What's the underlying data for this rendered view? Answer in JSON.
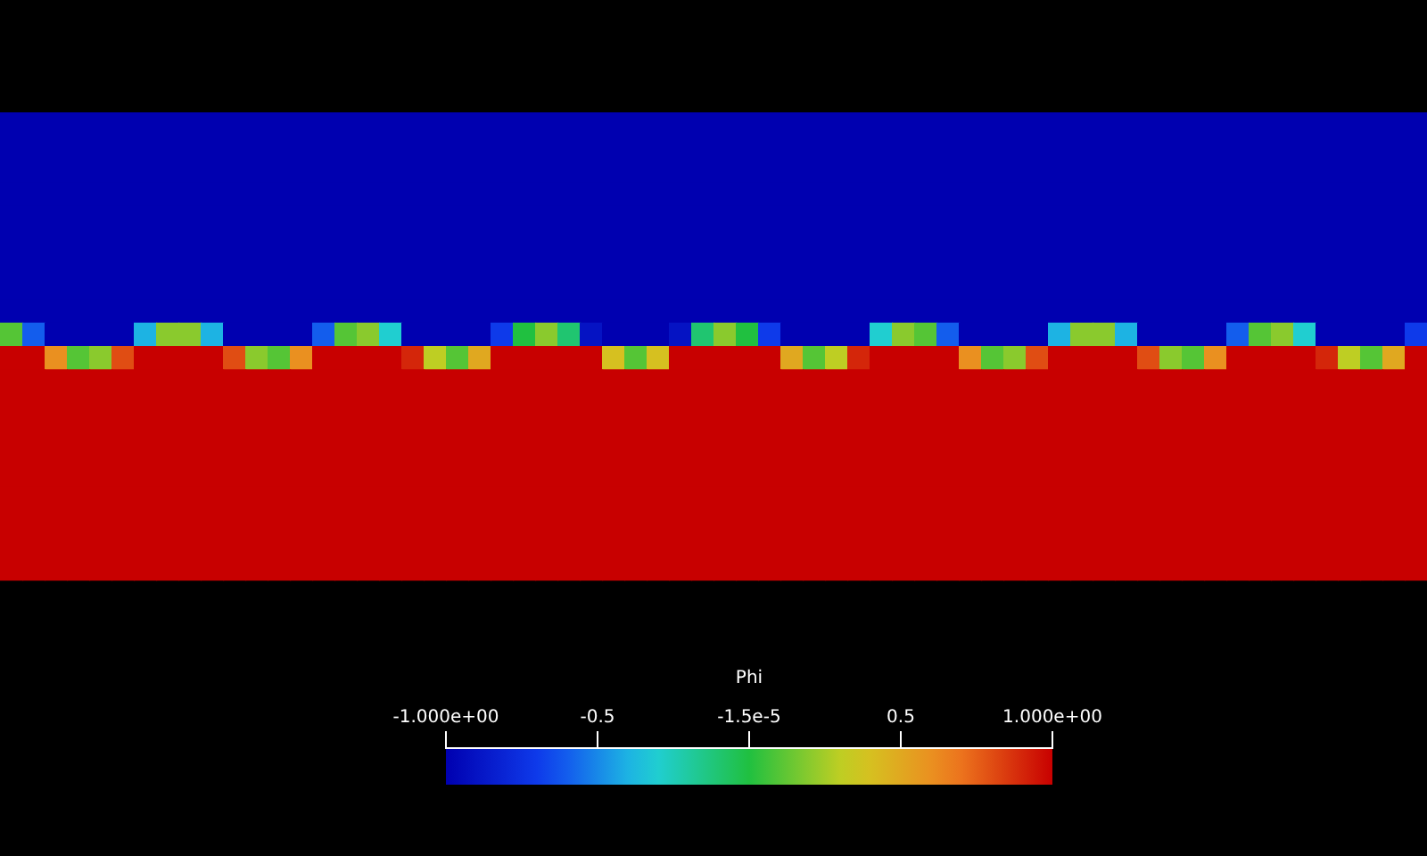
{
  "chart_data": {
    "type": "heatmap",
    "clabel": "Phi",
    "categories": [
      null,
      null,
      null,
      null,
      null,
      null,
      null,
      null,
      null,
      null,
      null,
      null,
      null,
      null,
      null,
      null,
      null,
      null,
      null,
      null,
      null,
      null,
      null,
      null,
      null,
      null,
      null,
      null,
      null,
      null,
      null,
      null,
      null,
      null,
      null,
      null,
      null,
      null,
      null,
      null,
      null,
      null,
      null,
      null,
      null,
      null,
      null,
      null,
      null,
      null,
      null,
      null,
      null,
      null,
      null,
      null,
      null,
      null,
      null,
      null,
      null,
      null,
      null,
      null
    ],
    "y_categories": [
      null,
      null,
      null,
      null,
      null,
      null,
      null,
      null,
      null,
      null,
      null,
      null,
      null,
      null,
      null,
      null,
      null,
      null,
      null,
      null
    ],
    "clim": [
      -1,
      1
    ],
    "cticks": [
      {
        "value": -1,
        "label": "-1.000e+00"
      },
      -0.5,
      {
        "value": -1.5e-05,
        "label": "-1.5e-5"
      },
      0.5,
      {
        "value": 1,
        "label": "1.000e+00"
      }
    ],
    "cells": [
      [
        -1,
        -1,
        -1,
        -1,
        -1,
        -1,
        -1,
        -1,
        -1,
        -1,
        -1,
        -1,
        -1,
        -1,
        -1,
        -1,
        -1,
        -1,
        -1,
        -1,
        -1,
        -1,
        -1,
        -1,
        -1,
        -1,
        -1,
        -1,
        -1,
        -1,
        -1,
        -1,
        -1,
        -1,
        -1,
        -1,
        -1,
        -1,
        -1,
        -1,
        -1,
        -1,
        -1,
        -1,
        -1,
        -1,
        -1,
        -1,
        -1,
        -1,
        -1,
        -1,
        -1,
        -1,
        -1,
        -1,
        -1,
        -1,
        -1,
        -1,
        -1,
        -1,
        -1,
        -1
      ],
      [
        -1,
        -1,
        -1,
        -1,
        -1,
        -1,
        -1,
        -1,
        -1,
        -1,
        -1,
        -1,
        -1,
        -1,
        -1,
        -1,
        -1,
        -1,
        -1,
        -1,
        -1,
        -1,
        -1,
        -1,
        -1,
        -1,
        -1,
        -1,
        -1,
        -1,
        -1,
        -1,
        -1,
        -1,
        -1,
        -1,
        -1,
        -1,
        -1,
        -1,
        -1,
        -1,
        -1,
        -1,
        -1,
        -1,
        -1,
        -1,
        -1,
        -1,
        -1,
        -1,
        -1,
        -1,
        -1,
        -1,
        -1,
        -1,
        -1,
        -1,
        -1,
        -1,
        -1,
        -1
      ],
      [
        -1,
        -1,
        -1,
        -1,
        -1,
        -1,
        -1,
        -1,
        -1,
        -1,
        -1,
        -1,
        -1,
        -1,
        -1,
        -1,
        -1,
        -1,
        -1,
        -1,
        -1,
        -1,
        -1,
        -1,
        -1,
        -1,
        -1,
        -1,
        -1,
        -1,
        -1,
        -1,
        -1,
        -1,
        -1,
        -1,
        -1,
        -1,
        -1,
        -1,
        -1,
        -1,
        -1,
        -1,
        -1,
        -1,
        -1,
        -1,
        -1,
        -1,
        -1,
        -1,
        -1,
        -1,
        -1,
        -1,
        -1,
        -1,
        -1,
        -1,
        -1,
        -1,
        -1,
        -1
      ],
      [
        -1,
        -1,
        -1,
        -1,
        -1,
        -1,
        -1,
        -1,
        -1,
        -1,
        -1,
        -1,
        -1,
        -1,
        -1,
        -1,
        -1,
        -1,
        -1,
        -1,
        -1,
        -1,
        -1,
        -1,
        -1,
        -1,
        -1,
        -1,
        -1,
        -1,
        -1,
        -1,
        -1,
        -1,
        -1,
        -1,
        -1,
        -1,
        -1,
        -1,
        -1,
        -1,
        -1,
        -1,
        -1,
        -1,
        -1,
        -1,
        -1,
        -1,
        -1,
        -1,
        -1,
        -1,
        -1,
        -1,
        -1,
        -1,
        -1,
        -1,
        -1,
        -1,
        -1,
        -1
      ],
      [
        -1,
        -1,
        -1,
        -1,
        -1,
        -1,
        -1,
        -1,
        -1,
        -1,
        -1,
        -1,
        -1,
        -1,
        -1,
        -1,
        -1,
        -1,
        -1,
        -1,
        -1,
        -1,
        -1,
        -1,
        -1,
        -1,
        -1,
        -1,
        -1,
        -1,
        -1,
        -1,
        -1,
        -1,
        -1,
        -1,
        -1,
        -1,
        -1,
        -1,
        -1,
        -1,
        -1,
        -1,
        -1,
        -1,
        -1,
        -1,
        -1,
        -1,
        -1,
        -1,
        -1,
        -1,
        -1,
        -1,
        -1,
        -1,
        -1,
        -1,
        -1,
        -1,
        -1,
        -1
      ],
      [
        -1,
        -1,
        -1,
        -1,
        -1,
        -1,
        -1,
        -1,
        -1,
        -1,
        -1,
        -1,
        -1,
        -1,
        -1,
        -1,
        -1,
        -1,
        -1,
        -1,
        -1,
        -1,
        -1,
        -1,
        -1,
        -1,
        -1,
        -1,
        -1,
        -1,
        -1,
        -1,
        -1,
        -1,
        -1,
        -1,
        -1,
        -1,
        -1,
        -1,
        -1,
        -1,
        -1,
        -1,
        -1,
        -1,
        -1,
        -1,
        -1,
        -1,
        -1,
        -1,
        -1,
        -1,
        -1,
        -1,
        -1,
        -1,
        -1,
        -1,
        -1,
        -1,
        -1,
        -1
      ],
      [
        -1,
        -1,
        -1,
        -1,
        -1,
        -1,
        -1,
        -1,
        -1,
        -1,
        -1,
        -1,
        -1,
        -1,
        -1,
        -1,
        -1,
        -1,
        -1,
        -1,
        -1,
        -1,
        -1,
        -1,
        -1,
        -1,
        -1,
        -1,
        -1,
        -1,
        -1,
        -1,
        -1,
        -1,
        -1,
        -1,
        -1,
        -1,
        -1,
        -1,
        -1,
        -1,
        -1,
        -1,
        -1,
        -1,
        -1,
        -1,
        -1,
        -1,
        -1,
        -1,
        -1,
        -1,
        -1,
        -1,
        -1,
        -1,
        -1,
        -1,
        -1,
        -1,
        -1,
        -1
      ],
      [
        -1,
        -1,
        -1,
        -1,
        -1,
        -1,
        -1,
        -1,
        -1,
        -1,
        -1,
        -1,
        -1,
        -1,
        -1,
        -1,
        -1,
        -1,
        -1,
        -1,
        -1,
        -1,
        -1,
        -1,
        -1,
        -1,
        -1,
        -1,
        -1,
        -1,
        -1,
        -1,
        -1,
        -1,
        -1,
        -1,
        -1,
        -1,
        -1,
        -1,
        -1,
        -1,
        -1,
        -1,
        -1,
        -1,
        -1,
        -1,
        -1,
        -1,
        -1,
        -1,
        -1,
        -1,
        -1,
        -1,
        -1,
        -1,
        -1,
        -1,
        -1,
        -1,
        -1,
        -1
      ],
      [
        -1,
        -1,
        -1,
        -1,
        -1,
        -1,
        -1,
        -1,
        -1,
        -1,
        -1,
        -1,
        -1,
        -1,
        -1,
        -1,
        -1,
        -1,
        -1,
        -1,
        -1,
        -1,
        -1,
        -1,
        -1,
        -1,
        -1,
        -1,
        -1,
        -1,
        -1,
        -1,
        -1,
        -1,
        -1,
        -1,
        -1,
        -1,
        -1,
        -1,
        -1,
        -1,
        -1,
        -1,
        -1,
        -1,
        -1,
        -1,
        -1,
        -1,
        -1,
        -1,
        -1,
        -1,
        -1,
        -1,
        -1,
        -1,
        -1,
        -1,
        -1,
        -1,
        -1,
        -1
      ],
      [
        0.1,
        -0.6,
        -1,
        -1,
        -1,
        -1,
        -0.4,
        0.2,
        0.2,
        -0.4,
        -1,
        -1,
        -1,
        -1,
        -0.6,
        0.1,
        0.2,
        -0.3,
        -1,
        -1,
        -1,
        -1,
        -0.7,
        0,
        0.2,
        -0.1,
        -0.9,
        -1,
        -1,
        -1,
        -0.9,
        -0.1,
        0.2,
        0,
        -0.7,
        -1,
        -1,
        -1,
        -1,
        -0.3,
        0.2,
        0.1,
        -0.6,
        -1,
        -1,
        -1,
        -1,
        -0.4,
        0.2,
        0.2,
        -0.4,
        -1,
        -1,
        -1,
        -1,
        -0.6,
        0.1,
        0.2,
        -0.3,
        -1,
        -1,
        -1,
        -1,
        -0.7
      ],
      [
        1,
        1,
        0.6,
        0.1,
        0.2,
        0.8,
        1,
        1,
        1,
        1,
        0.8,
        0.2,
        0.1,
        0.6,
        1,
        1,
        1,
        1,
        0.9,
        0.3,
        0.1,
        0.5,
        1,
        1,
        1,
        1,
        1,
        0.4,
        0.1,
        0.4,
        1,
        1,
        1,
        1,
        1,
        0.5,
        0.1,
        0.3,
        0.9,
        1,
        1,
        1,
        1,
        0.6,
        0.1,
        0.2,
        0.8,
        1,
        1,
        1,
        1,
        0.8,
        0.2,
        0.1,
        0.6,
        1,
        1,
        1,
        1,
        0.9,
        0.3,
        0.1,
        0.5,
        1
      ],
      [
        1,
        1,
        1,
        1,
        1,
        1,
        1,
        1,
        1,
        1,
        1,
        1,
        1,
        1,
        1,
        1,
        1,
        1,
        1,
        1,
        1,
        1,
        1,
        1,
        1,
        1,
        1,
        1,
        1,
        1,
        1,
        1,
        1,
        1,
        1,
        1,
        1,
        1,
        1,
        1,
        1,
        1,
        1,
        1,
        1,
        1,
        1,
        1,
        1,
        1,
        1,
        1,
        1,
        1,
        1,
        1,
        1,
        1,
        1,
        1,
        1,
        1,
        1,
        1
      ],
      [
        1,
        1,
        1,
        1,
        1,
        1,
        1,
        1,
        1,
        1,
        1,
        1,
        1,
        1,
        1,
        1,
        1,
        1,
        1,
        1,
        1,
        1,
        1,
        1,
        1,
        1,
        1,
        1,
        1,
        1,
        1,
        1,
        1,
        1,
        1,
        1,
        1,
        1,
        1,
        1,
        1,
        1,
        1,
        1,
        1,
        1,
        1,
        1,
        1,
        1,
        1,
        1,
        1,
        1,
        1,
        1,
        1,
        1,
        1,
        1,
        1,
        1,
        1,
        1
      ],
      [
        1,
        1,
        1,
        1,
        1,
        1,
        1,
        1,
        1,
        1,
        1,
        1,
        1,
        1,
        1,
        1,
        1,
        1,
        1,
        1,
        1,
        1,
        1,
        1,
        1,
        1,
        1,
        1,
        1,
        1,
        1,
        1,
        1,
        1,
        1,
        1,
        1,
        1,
        1,
        1,
        1,
        1,
        1,
        1,
        1,
        1,
        1,
        1,
        1,
        1,
        1,
        1,
        1,
        1,
        1,
        1,
        1,
        1,
        1,
        1,
        1,
        1,
        1,
        1
      ],
      [
        1,
        1,
        1,
        1,
        1,
        1,
        1,
        1,
        1,
        1,
        1,
        1,
        1,
        1,
        1,
        1,
        1,
        1,
        1,
        1,
        1,
        1,
        1,
        1,
        1,
        1,
        1,
        1,
        1,
        1,
        1,
        1,
        1,
        1,
        1,
        1,
        1,
        1,
        1,
        1,
        1,
        1,
        1,
        1,
        1,
        1,
        1,
        1,
        1,
        1,
        1,
        1,
        1,
        1,
        1,
        1,
        1,
        1,
        1,
        1,
        1,
        1,
        1,
        1
      ],
      [
        1,
        1,
        1,
        1,
        1,
        1,
        1,
        1,
        1,
        1,
        1,
        1,
        1,
        1,
        1,
        1,
        1,
        1,
        1,
        1,
        1,
        1,
        1,
        1,
        1,
        1,
        1,
        1,
        1,
        1,
        1,
        1,
        1,
        1,
        1,
        1,
        1,
        1,
        1,
        1,
        1,
        1,
        1,
        1,
        1,
        1,
        1,
        1,
        1,
        1,
        1,
        1,
        1,
        1,
        1,
        1,
        1,
        1,
        1,
        1,
        1,
        1,
        1,
        1
      ],
      [
        1,
        1,
        1,
        1,
        1,
        1,
        1,
        1,
        1,
        1,
        1,
        1,
        1,
        1,
        1,
        1,
        1,
        1,
        1,
        1,
        1,
        1,
        1,
        1,
        1,
        1,
        1,
        1,
        1,
        1,
        1,
        1,
        1,
        1,
        1,
        1,
        1,
        1,
        1,
        1,
        1,
        1,
        1,
        1,
        1,
        1,
        1,
        1,
        1,
        1,
        1,
        1,
        1,
        1,
        1,
        1,
        1,
        1,
        1,
        1,
        1,
        1,
        1,
        1
      ],
      [
        1,
        1,
        1,
        1,
        1,
        1,
        1,
        1,
        1,
        1,
        1,
        1,
        1,
        1,
        1,
        1,
        1,
        1,
        1,
        1,
        1,
        1,
        1,
        1,
        1,
        1,
        1,
        1,
        1,
        1,
        1,
        1,
        1,
        1,
        1,
        1,
        1,
        1,
        1,
        1,
        1,
        1,
        1,
        1,
        1,
        1,
        1,
        1,
        1,
        1,
        1,
        1,
        1,
        1,
        1,
        1,
        1,
        1,
        1,
        1,
        1,
        1,
        1,
        1
      ],
      [
        1,
        1,
        1,
        1,
        1,
        1,
        1,
        1,
        1,
        1,
        1,
        1,
        1,
        1,
        1,
        1,
        1,
        1,
        1,
        1,
        1,
        1,
        1,
        1,
        1,
        1,
        1,
        1,
        1,
        1,
        1,
        1,
        1,
        1,
        1,
        1,
        1,
        1,
        1,
        1,
        1,
        1,
        1,
        1,
        1,
        1,
        1,
        1,
        1,
        1,
        1,
        1,
        1,
        1,
        1,
        1,
        1,
        1,
        1,
        1,
        1,
        1,
        1,
        1
      ],
      [
        1,
        1,
        1,
        1,
        1,
        1,
        1,
        1,
        1,
        1,
        1,
        1,
        1,
        1,
        1,
        1,
        1,
        1,
        1,
        1,
        1,
        1,
        1,
        1,
        1,
        1,
        1,
        1,
        1,
        1,
        1,
        1,
        1,
        1,
        1,
        1,
        1,
        1,
        1,
        1,
        1,
        1,
        1,
        1,
        1,
        1,
        1,
        1,
        1,
        1,
        1,
        1,
        1,
        1,
        1,
        1,
        1,
        1,
        1,
        1,
        1,
        1,
        1,
        1
      ]
    ]
  }
}
